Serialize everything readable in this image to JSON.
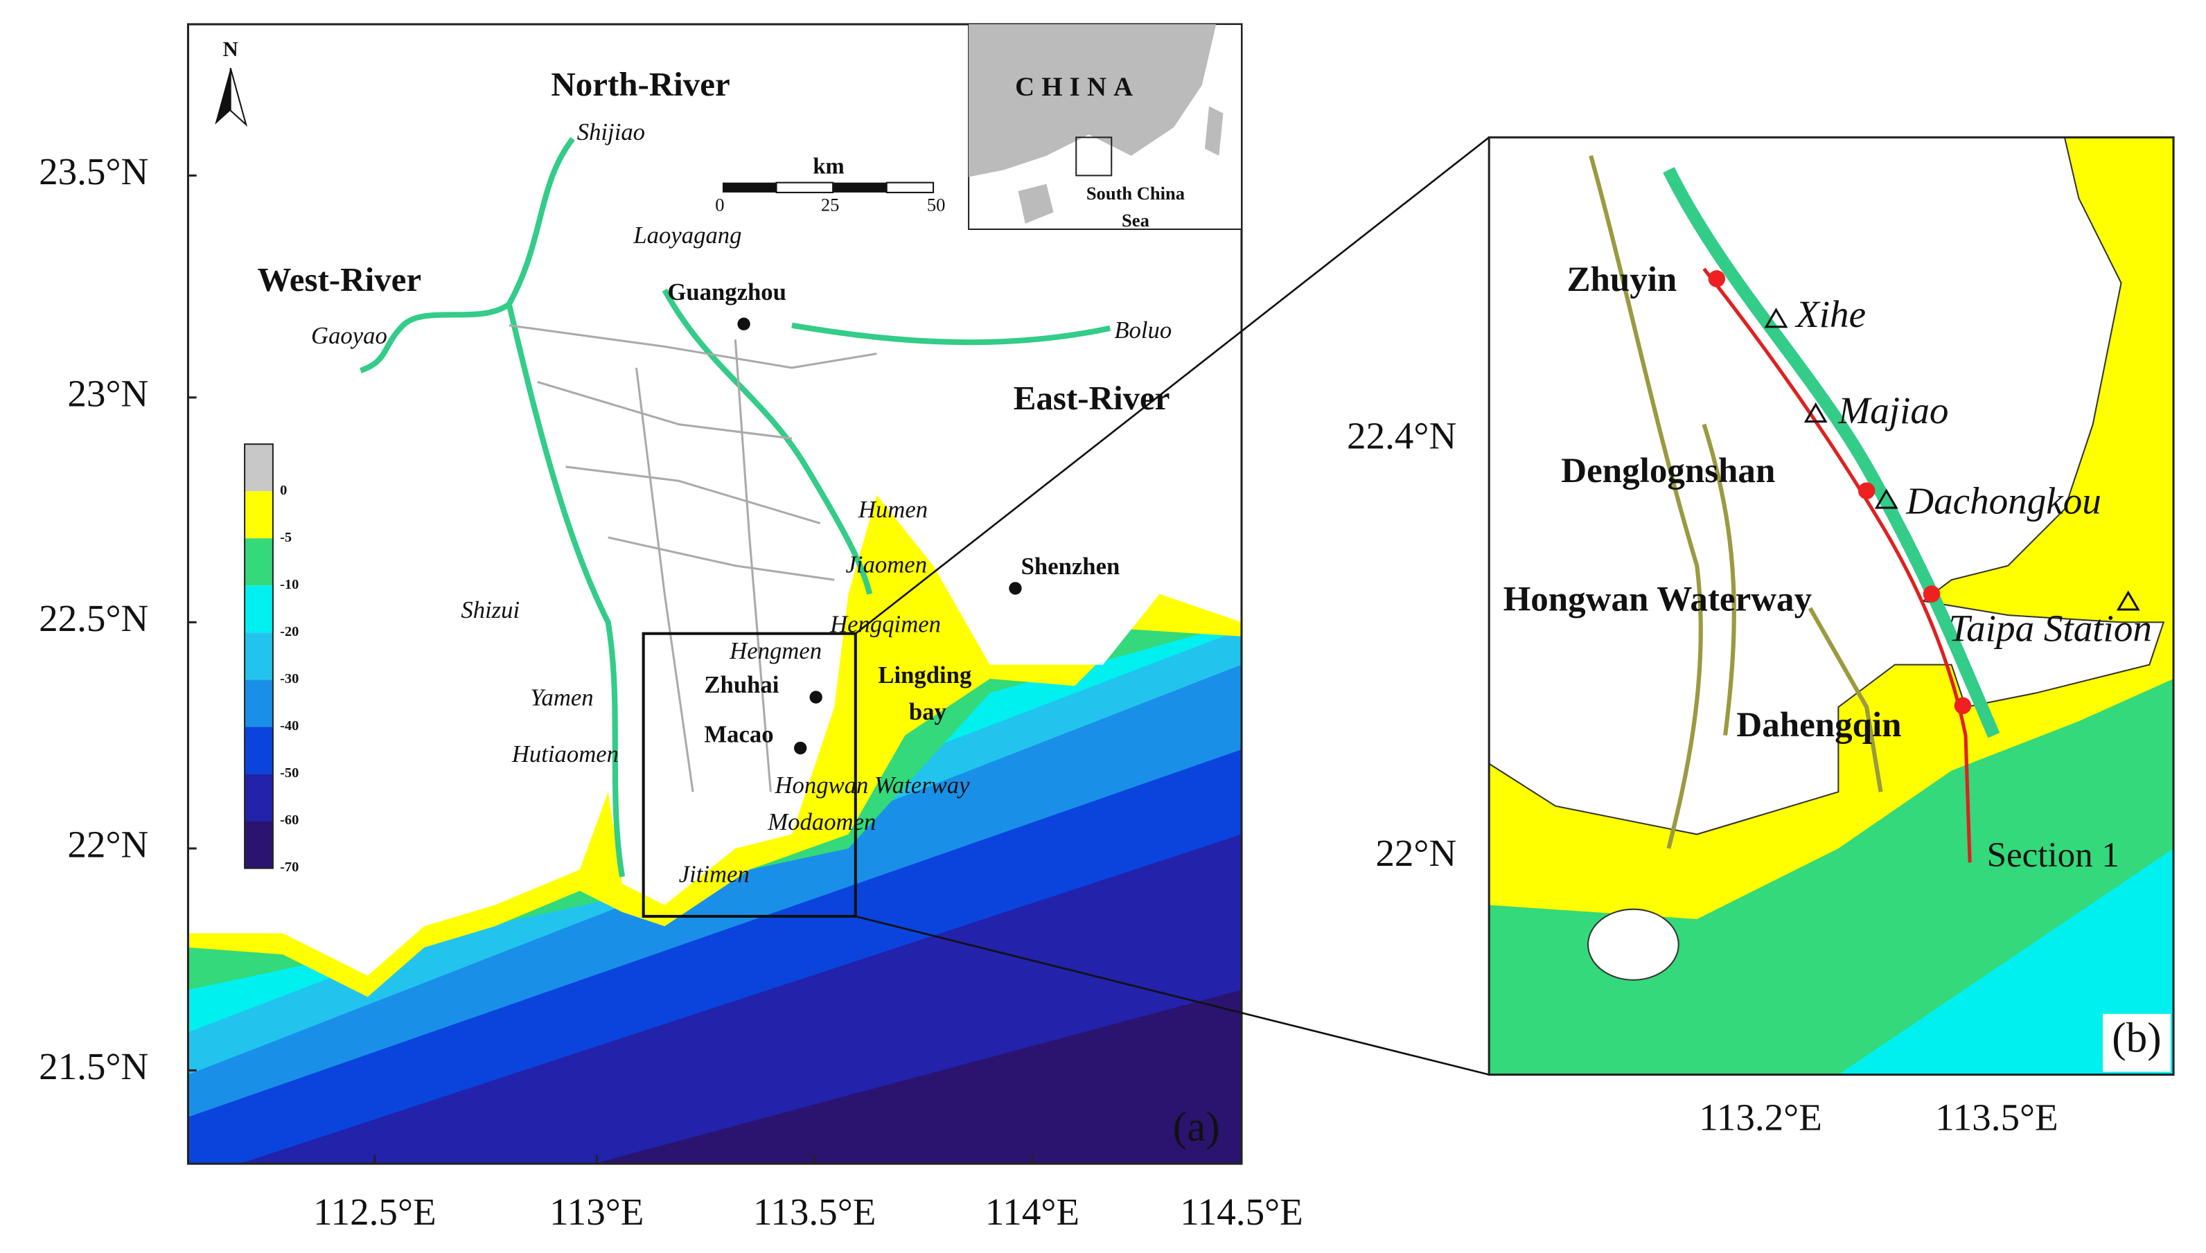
{
  "panel_a": {
    "label": "(a)",
    "north": "N",
    "lon_ticks": [
      "112.5°E",
      "113°E",
      "113.5°E",
      "114°E",
      "114.5°E"
    ],
    "lat_ticks": [
      "23.5°N",
      "23°N",
      "22.5°N",
      "22°N",
      "21.5°N"
    ],
    "rivers": [
      "North-River",
      "West-River",
      "East-River"
    ],
    "cities": [
      "Guangzhou",
      "Shenzhen",
      "Zhuhai",
      "Macao"
    ],
    "bay": [
      "Lingding",
      "bay"
    ],
    "stations": [
      "Shijiao",
      "Laoyagang",
      "Gaoyao",
      "Boluo",
      "Humen",
      "Jiaomen",
      "Hengqimen",
      "Hengmen",
      "Shizui",
      "Yamen",
      "Hutiaomen",
      "Hongwan Waterway",
      "Modaomen",
      "Jitimen"
    ],
    "scale_bar": {
      "unit": "km",
      "ticks": [
        "0",
        "25",
        "50"
      ]
    },
    "inset": {
      "country": "CHINA",
      "sea": [
        "South China",
        "Sea"
      ]
    },
    "depth_legend": [
      "0",
      "-5",
      "-10",
      "-20",
      "-30",
      "-40",
      "-50",
      "-60",
      "-70"
    ]
  },
  "panel_b": {
    "label": "(b)",
    "lon_ticks": [
      "113.2°E",
      "113.5°E"
    ],
    "lat_ticks": [
      "22.4°N",
      "22°N"
    ],
    "places": [
      "Zhuyin",
      "Denglognshan",
      "Hongwan Waterway",
      "Dahengqin"
    ],
    "stations": [
      "Xihe",
      "Majiao",
      "Dachongkou",
      "Taipa Station"
    ],
    "section": "Section 1"
  }
}
